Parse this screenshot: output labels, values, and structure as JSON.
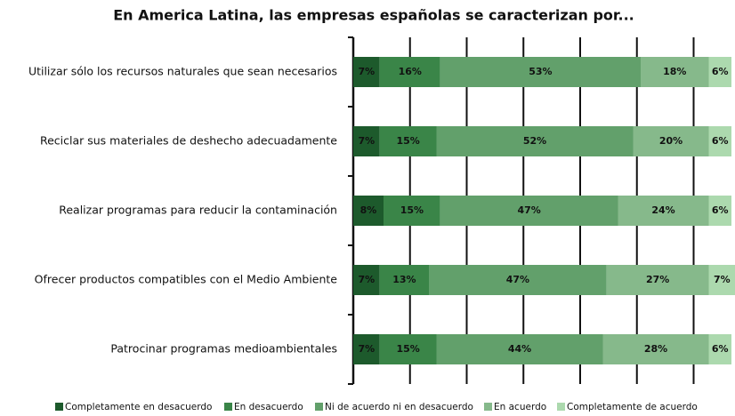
{
  "chart_data": {
    "type": "stacked-bar-horizontal",
    "title": "En America Latina, las empresas españolas se caracterizan por...",
    "categories": [
      "Utilizar sólo los recursos naturales que sean necesarios",
      "Reciclar sus materiales de deshecho adecuadamente",
      "Realizar programas para reducir la contaminación",
      "Ofrecer productos compatibles con el Medio Ambiente",
      "Patrocinar programas medioambientales"
    ],
    "series": [
      {
        "name": "Completamente en desacuerdo",
        "color": "#1d5a2c",
        "values": [
          7,
          7,
          8,
          7,
          7
        ],
        "value_labels": [
          "7%",
          "7%",
          "8%",
          "7%",
          "7%"
        ]
      },
      {
        "name": "En desacuerdo",
        "color": "#3a8548",
        "values": [
          16,
          15,
          15,
          13,
          15
        ],
        "value_labels": [
          "16%",
          "15%",
          "15%",
          "13%",
          "15%"
        ]
      },
      {
        "name": "Ni de acuerdo ni en desacuerdo",
        "color": "#62a06b",
        "values": [
          53,
          52,
          47,
          47,
          44
        ],
        "value_labels": [
          "53%",
          "52%",
          "47%",
          "47%",
          "44%"
        ]
      },
      {
        "name": "En acuerdo",
        "color": "#86b98b",
        "values": [
          18,
          20,
          24,
          27,
          28
        ],
        "value_labels": [
          "18%",
          "20%",
          "24%",
          "27%",
          "28%"
        ]
      },
      {
        "name": "Completamente de acuerdo",
        "color": "#acd9ae",
        "values": [
          6,
          6,
          6,
          7,
          6
        ],
        "value_labels": [
          "6%",
          "6%",
          "6%",
          "7%",
          "6%"
        ]
      }
    ],
    "xlim": [
      0,
      100
    ],
    "xticks": [
      0,
      15,
      30,
      45,
      60,
      75,
      90
    ],
    "grid": true
  }
}
